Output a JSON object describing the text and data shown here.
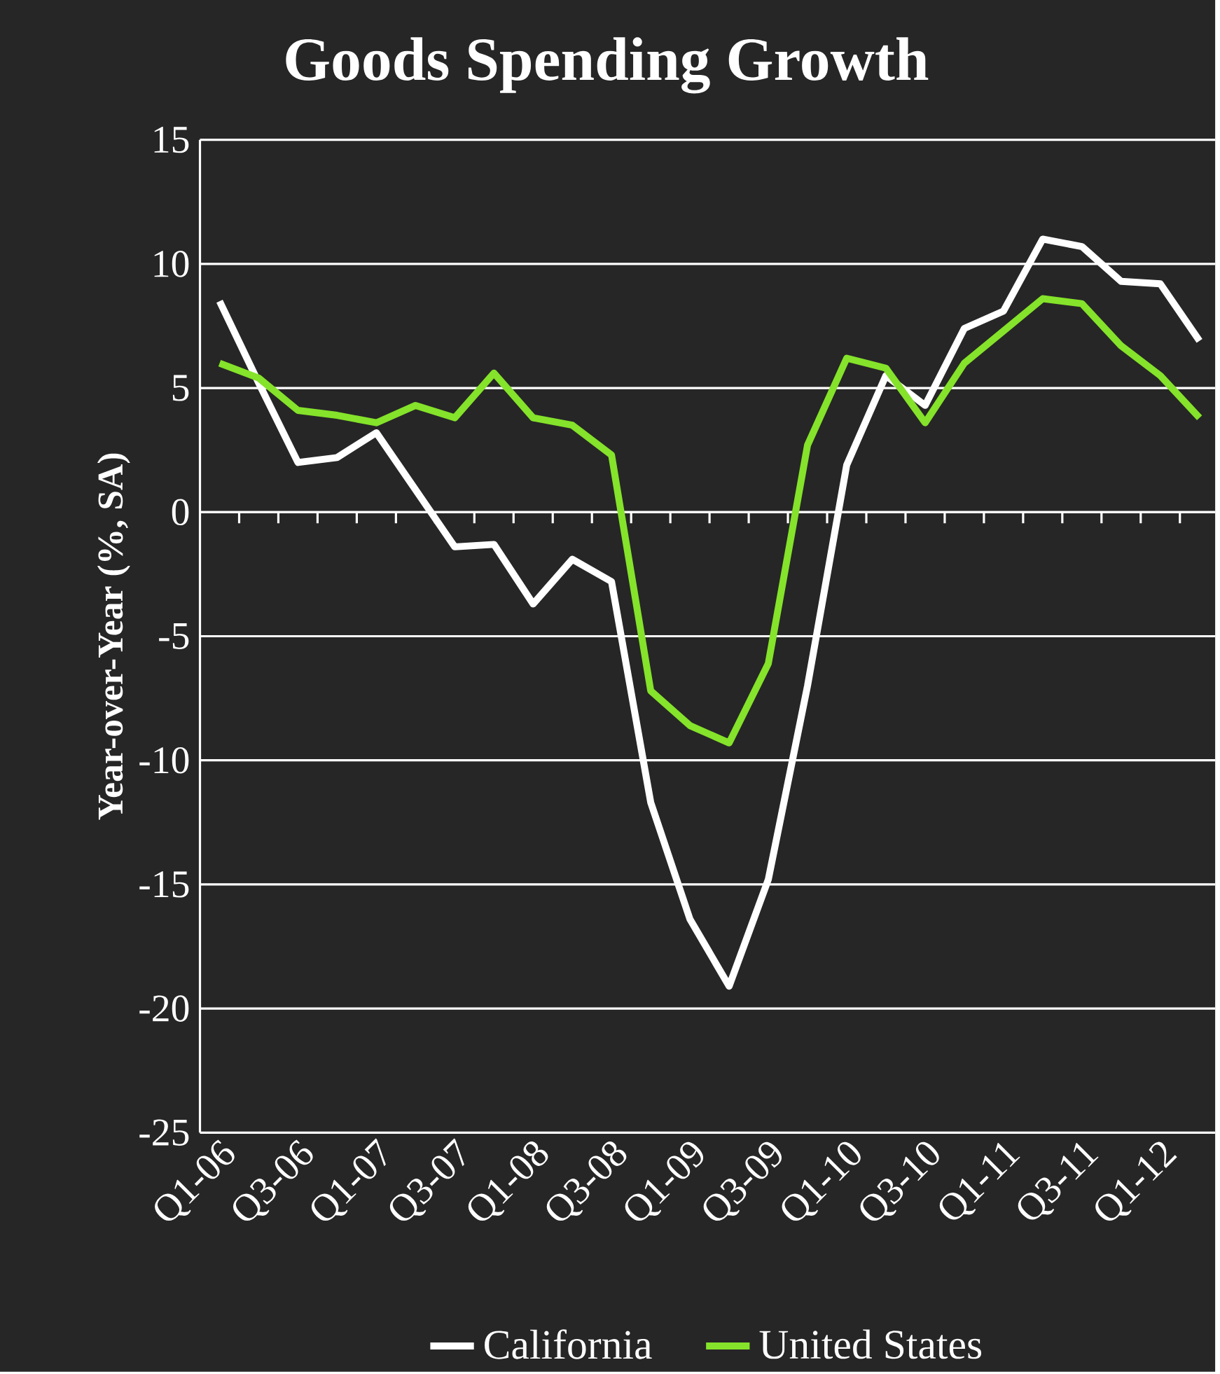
{
  "chart_data": {
    "type": "line",
    "title": "Goods Spending Growth",
    "ylabel": "Year-over-Year (%, SA)",
    "categories": [
      "Q1-06",
      null,
      "Q3-06",
      null,
      "Q1-07",
      null,
      "Q3-07",
      null,
      "Q1-08",
      null,
      "Q3-08",
      null,
      "Q1-09",
      null,
      "Q3-09",
      null,
      "Q1-10",
      null,
      "Q3-10",
      null,
      "Q1-11",
      null,
      "Q3-11",
      null,
      "Q1-12",
      null
    ],
    "series": [
      {
        "name": "California",
        "color": "#ffffff",
        "values": [
          8.5,
          5.2,
          2.0,
          2.2,
          3.2,
          0.9,
          -1.4,
          -1.3,
          -3.7,
          -1.9,
          -2.8,
          -11.7,
          -16.4,
          -19.1,
          -14.8,
          -7.0,
          1.9,
          5.5,
          4.3,
          7.4,
          8.1,
          11.0,
          10.7,
          9.3,
          9.2,
          6.9
        ]
      },
      {
        "name": "United States",
        "color": "#84e32a",
        "values": [
          6.0,
          5.4,
          4.1,
          3.9,
          3.6,
          4.3,
          3.8,
          5.6,
          3.8,
          3.5,
          2.3,
          -7.2,
          -8.6,
          -9.3,
          -6.1,
          2.7,
          6.2,
          5.8,
          3.6,
          6.0,
          7.3,
          8.6,
          8.4,
          6.7,
          5.5,
          3.8
        ]
      }
    ],
    "ylim": [
      -25,
      15
    ],
    "yticks": [
      -25,
      -20,
      -15,
      -10,
      -5,
      0,
      5,
      10,
      15
    ],
    "grid": "y",
    "legend": "bottom",
    "marker": "none",
    "line_style": "solid"
  }
}
